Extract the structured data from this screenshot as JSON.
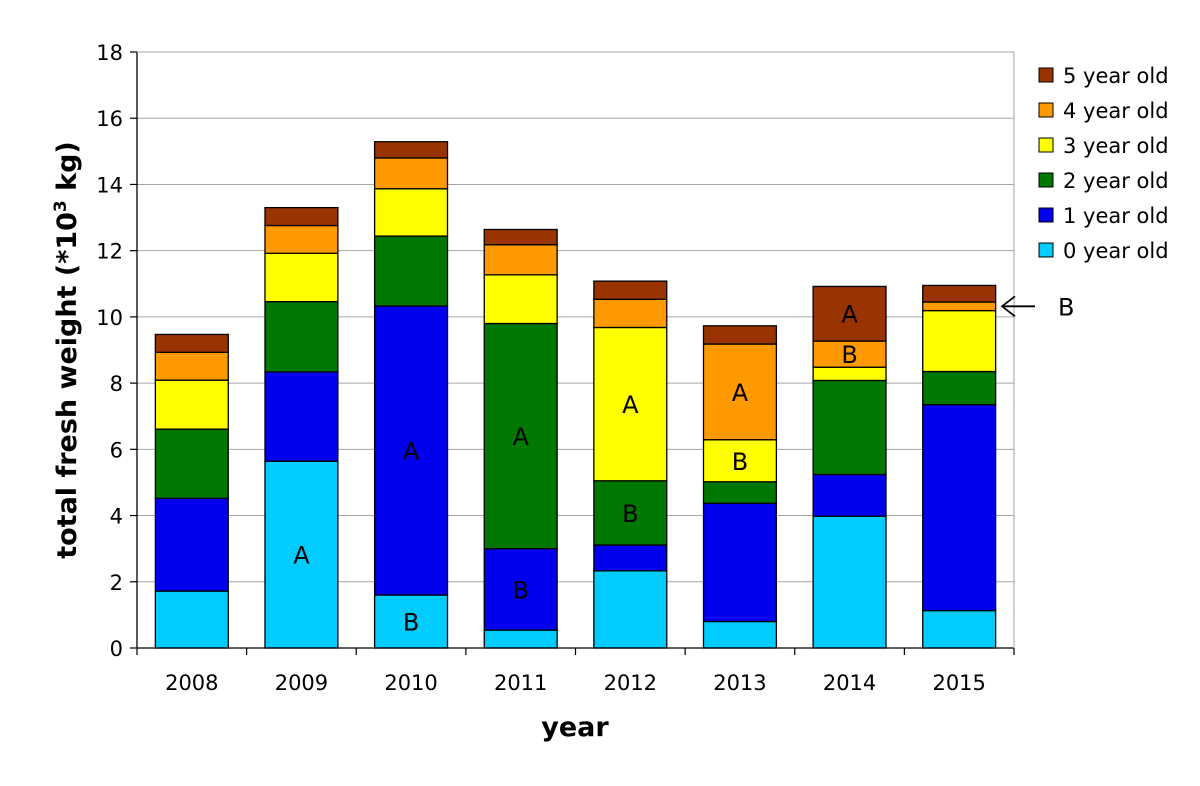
{
  "chart_data": {
    "type": "bar",
    "stacked": true,
    "title": "",
    "xlabel": "year",
    "ylabel": "total fresh weight (*10",
    "ylabel_sup": "3",
    "ylabel_end": " kg)",
    "ylim": [
      0,
      18
    ],
    "yticks": [
      "0",
      "2",
      "4",
      "6",
      "8",
      "10",
      "12",
      "14",
      "16",
      "18"
    ],
    "grid": true,
    "legend_position": "right",
    "categories": [
      "2008",
      "2009",
      "2010",
      "2011",
      "2012",
      "2013",
      "2014",
      "2015"
    ],
    "series": [
      {
        "name": "0 year old",
        "color": "#00ccff",
        "values": [
          1.72,
          5.64,
          1.6,
          0.54,
          2.33,
          0.8,
          3.98,
          1.13
        ]
      },
      {
        "name": "1 year old",
        "color": "#0000ee",
        "values": [
          2.8,
          2.7,
          8.73,
          2.46,
          0.78,
          3.57,
          1.26,
          6.22
        ]
      },
      {
        "name": "2 year old",
        "color": "#007700",
        "values": [
          2.09,
          2.12,
          2.11,
          6.8,
          1.94,
          0.65,
          2.84,
          1.0
        ]
      },
      {
        "name": "3 year old",
        "color": "#ffff00",
        "values": [
          1.48,
          1.46,
          1.43,
          1.47,
          4.63,
          1.27,
          0.4,
          1.84
        ]
      },
      {
        "name": "4 year old",
        "color": "#ff9900",
        "values": [
          0.84,
          0.84,
          0.93,
          0.91,
          0.85,
          2.89,
          0.79,
          0.26
        ]
      },
      {
        "name": "5 year old",
        "color": "#993300",
        "values": [
          0.54,
          0.54,
          0.49,
          0.46,
          0.55,
          0.55,
          1.65,
          0.5
        ]
      }
    ],
    "annotations": [
      {
        "text": "A",
        "category": "2009",
        "series": "0 year old"
      },
      {
        "text": "A",
        "category": "2010",
        "series": "1 year old"
      },
      {
        "text": "B",
        "category": "2010",
        "series": "0 year old"
      },
      {
        "text": "A",
        "category": "2011",
        "series": "2 year old"
      },
      {
        "text": "B",
        "category": "2011",
        "series": "1 year old"
      },
      {
        "text": "A",
        "category": "2012",
        "series": "3 year old"
      },
      {
        "text": "B",
        "category": "2012",
        "series": "2 year old"
      },
      {
        "text": "A",
        "category": "2013",
        "series": "4 year old"
      },
      {
        "text": "B",
        "category": "2013",
        "series": "3 year old"
      },
      {
        "text": "A",
        "category": "2014",
        "series": "5 year old"
      },
      {
        "text": "B",
        "category": "2014",
        "series": "4 year old"
      }
    ],
    "arrow_annotation": {
      "text": "B",
      "category": "2015",
      "series": "4 year old",
      "direction": "left"
    }
  }
}
